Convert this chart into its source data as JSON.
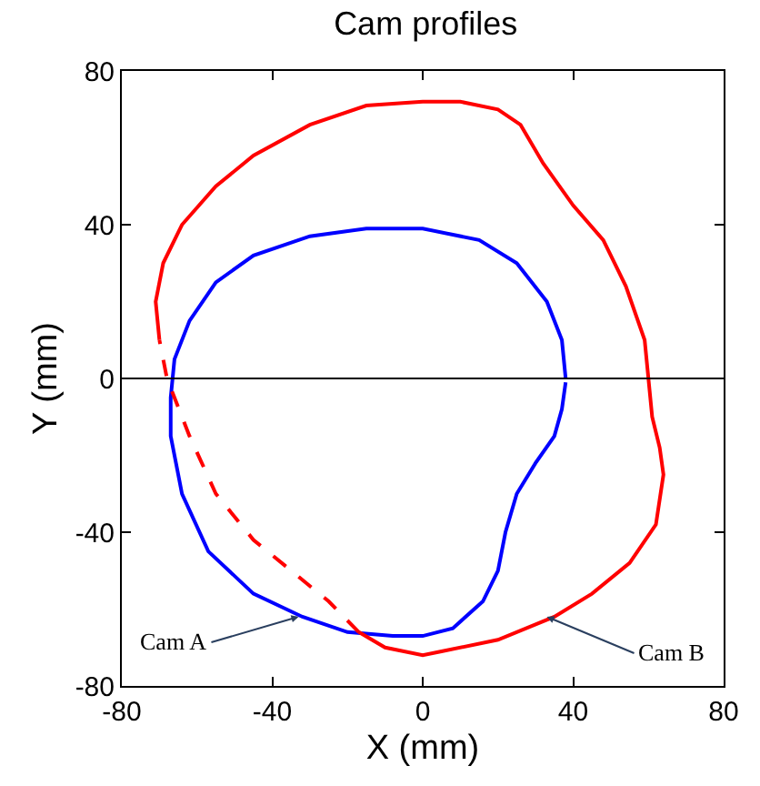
{
  "chart_data": {
    "type": "line",
    "title": "Cam profiles",
    "xlabel": "X (mm)",
    "ylabel": "Y (mm)",
    "xlim": [
      -80,
      80
    ],
    "ylim": [
      -80,
      80
    ],
    "xticks": [
      -80,
      -40,
      0,
      40,
      80
    ],
    "yticks": [
      -80,
      -40,
      0,
      40,
      80
    ],
    "marker": "none",
    "series": [
      {
        "color": "#0000ff",
        "line_style": "solid",
        "x": [
          38,
          37,
          33,
          25,
          15,
          0,
          -15,
          -30,
          -45,
          -55,
          -62,
          -66,
          -67,
          -67,
          -64,
          -57,
          -45,
          -32,
          -20,
          -8,
          0,
          8,
          16,
          20,
          22,
          25,
          30,
          35,
          37,
          38
        ],
        "values": [
          0,
          10,
          20,
          30,
          36,
          39,
          39,
          37,
          32,
          25,
          15,
          5,
          -5,
          -15,
          -30,
          -45,
          -56,
          -62,
          -66,
          -67,
          -67,
          -65,
          -58,
          -50,
          -40,
          -30,
          -22,
          -15,
          -8,
          -1
        ]
      },
      {
        "color": "#ff0000",
        "line_style": "solid",
        "x": [
          -70,
          -71,
          -69,
          -64,
          -55,
          -45,
          -30,
          -15,
          0,
          10,
          20,
          26,
          32,
          40,
          48,
          54,
          59,
          60,
          61,
          63,
          64,
          62,
          55,
          45,
          35,
          20,
          5,
          0,
          -10,
          -17
        ],
        "values": [
          10,
          20,
          30,
          40,
          50,
          58,
          66,
          71,
          72,
          72,
          70,
          66,
          56,
          45,
          36,
          24,
          10,
          0,
          -10,
          -18,
          -25,
          -38,
          -48,
          -56,
          -62,
          -68,
          -71,
          -72,
          -70,
          -66
        ]
      },
      {
        "color": "#ff0000",
        "line_style": "dashed",
        "x": [
          -17,
          -25,
          -35,
          -45,
          -55,
          -62,
          -68,
          -70
        ],
        "values": [
          -66,
          -58,
          -50,
          -42,
          -30,
          -15,
          0,
          10
        ]
      }
    ],
    "ref_lines": [
      {
        "axis": "y",
        "value": 0,
        "color": "#000000"
      }
    ],
    "annotations": [
      {
        "text": "Cam A",
        "x": -33,
        "y": -62
      },
      {
        "text": "Cam B",
        "x": 33,
        "y": -62
      }
    ]
  }
}
